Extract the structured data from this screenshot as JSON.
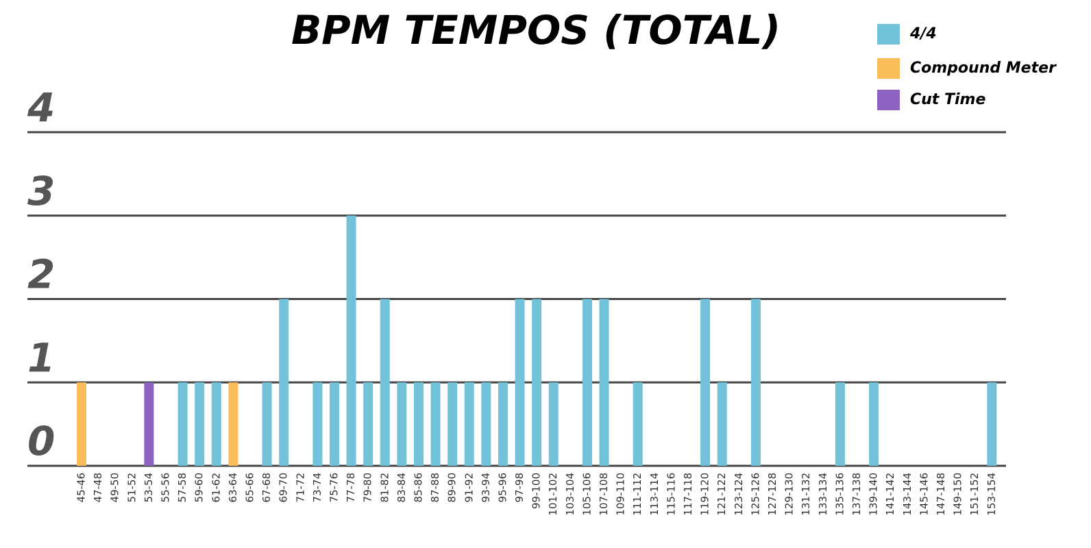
{
  "chart_data": {
    "type": "bar",
    "title": "BPM TEMPOS (TOTAL)",
    "categories": [
      "45-46",
      "47-48",
      "49-50",
      "51-52",
      "53-54",
      "55-56",
      "57-58",
      "59-60",
      "61-62",
      "63-64",
      "65-66",
      "67-68",
      "69-70",
      "71-72",
      "73-74",
      "75-76",
      "77-78",
      "79-80",
      "81-82",
      "83-84",
      "85-86",
      "87-88",
      "89-90",
      "91-92",
      "93-94",
      "95-96",
      "97-98",
      "99-100",
      "101-102",
      "103-104",
      "105-106",
      "107-108",
      "109-110",
      "111-112",
      "113-114",
      "115-116",
      "117-118",
      "119-120",
      "121-122",
      "123-124",
      "125-126",
      "127-128",
      "129-130",
      "131-132",
      "133-134",
      "135-136",
      "137-138",
      "139-140",
      "141-142",
      "143-144",
      "145-146",
      "147-148",
      "149-150",
      "151-152",
      "153-154"
    ],
    "series": [
      {
        "name": "4/4",
        "color": "#72c3d9",
        "values": [
          null,
          null,
          null,
          null,
          null,
          null,
          1,
          1,
          1,
          null,
          null,
          1,
          2,
          null,
          1,
          1,
          3,
          1,
          2,
          1,
          1,
          1,
          1,
          1,
          1,
          1,
          2,
          2,
          1,
          null,
          2,
          2,
          null,
          1,
          null,
          null,
          null,
          2,
          1,
          null,
          2,
          null,
          null,
          null,
          null,
          1,
          null,
          1,
          null,
          null,
          null,
          null,
          null,
          null,
          1
        ]
      },
      {
        "name": "Compound Meter",
        "color": "#fbbd5a",
        "values": [
          1,
          null,
          null,
          null,
          null,
          null,
          null,
          null,
          null,
          1,
          null,
          null,
          null,
          null,
          null,
          null,
          null,
          null,
          null,
          null,
          null,
          null,
          null,
          null,
          null,
          null,
          null,
          null,
          null,
          null,
          null,
          null,
          null,
          null,
          null,
          null,
          null,
          null,
          null,
          null,
          null,
          null,
          null,
          null,
          null,
          null,
          null,
          null,
          null,
          null,
          null,
          null,
          null,
          null,
          null
        ]
      },
      {
        "name": "Cut Time",
        "color": "#8e62c2",
        "values": [
          null,
          null,
          null,
          null,
          1,
          null,
          null,
          null,
          null,
          null,
          null,
          null,
          null,
          null,
          null,
          null,
          null,
          null,
          null,
          null,
          null,
          null,
          null,
          null,
          null,
          null,
          null,
          null,
          null,
          null,
          null,
          null,
          null,
          null,
          null,
          null,
          null,
          null,
          null,
          null,
          null,
          null,
          null,
          null,
          null,
          null,
          null,
          null,
          null,
          null,
          null,
          null,
          null,
          null,
          null
        ]
      }
    ],
    "ylim": [
      0,
      4
    ],
    "yticks": [
      0,
      1,
      2,
      3,
      4
    ],
    "grid": true,
    "legend": "top-right"
  }
}
